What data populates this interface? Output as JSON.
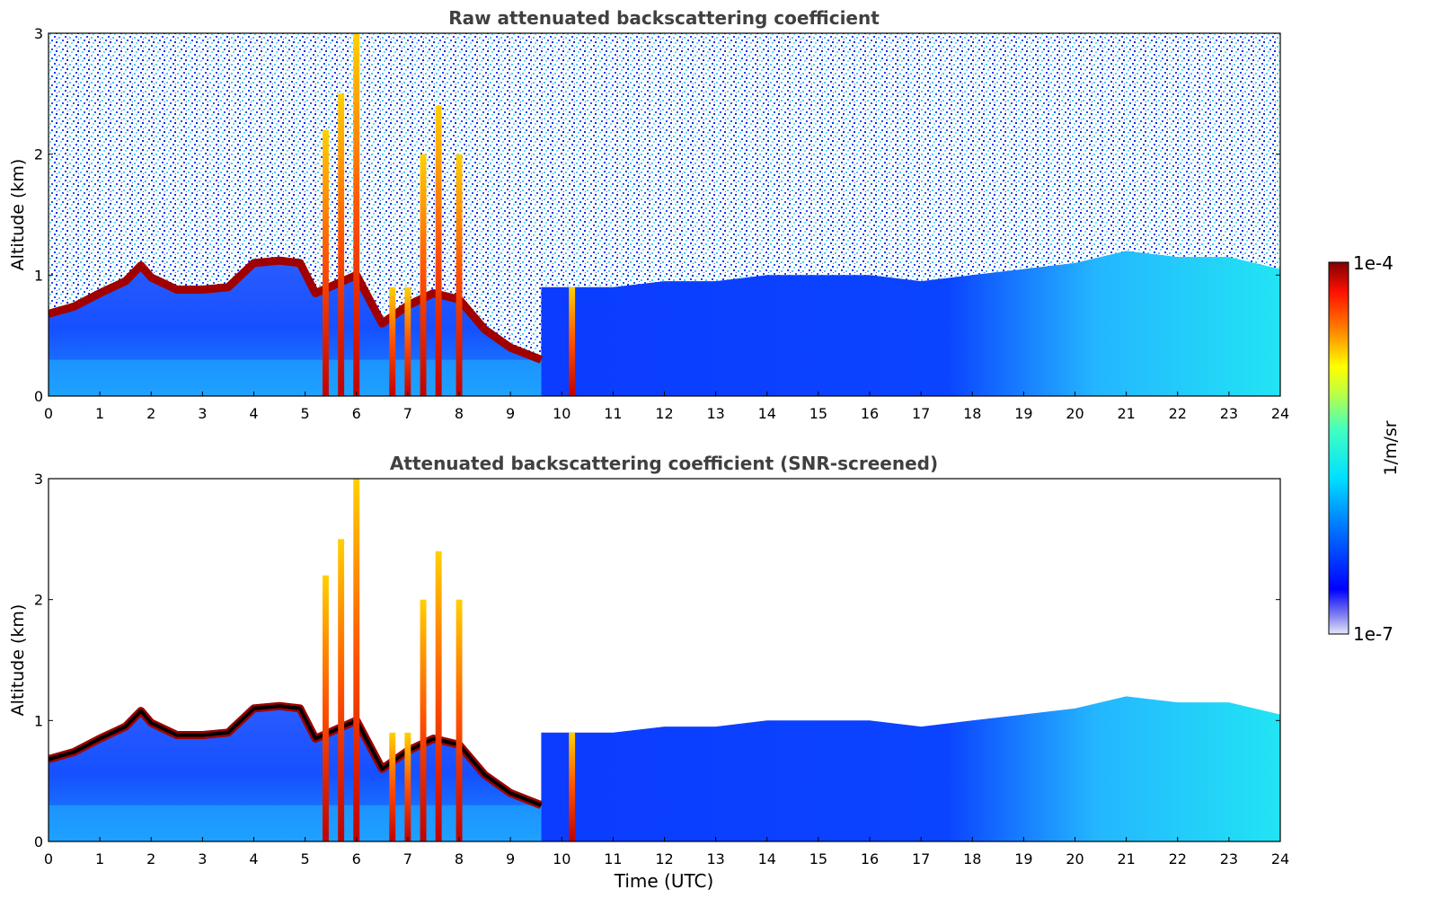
{
  "chart_data": [
    {
      "type": "heatmap",
      "title": "Raw attenuated backscattering coefficient",
      "xlabel": "",
      "ylabel": "Altitude (km)",
      "xlim": [
        0,
        24
      ],
      "ylim": [
        0,
        3
      ],
      "x_ticks": [
        "0",
        "1",
        "2",
        "3",
        "4",
        "5",
        "6",
        "7",
        "8",
        "9",
        "10",
        "11",
        "12",
        "13",
        "14",
        "15",
        "16",
        "17",
        "18",
        "19",
        "20",
        "21",
        "22",
        "23",
        "24"
      ],
      "y_ticks": [
        "0",
        "1",
        "2",
        "3"
      ],
      "colorscale": "jet",
      "color_log_range": [
        "1e-7",
        "1e-4"
      ],
      "layers": {
        "top_layer_km": [
          [
            0,
            0.68
          ],
          [
            0.5,
            0.74
          ],
          [
            1.0,
            0.85
          ],
          [
            1.5,
            0.95
          ],
          [
            1.8,
            1.08
          ],
          [
            2.0,
            0.98
          ],
          [
            2.5,
            0.88
          ],
          [
            3.0,
            0.88
          ],
          [
            3.5,
            0.9
          ],
          [
            4.0,
            1.1
          ],
          [
            4.5,
            1.12
          ],
          [
            4.9,
            1.1
          ],
          [
            5.2,
            0.85
          ],
          [
            6.0,
            1.0
          ],
          [
            6.5,
            0.6
          ],
          [
            7.0,
            0.75
          ],
          [
            7.5,
            0.85
          ],
          [
            8.0,
            0.8
          ],
          [
            8.5,
            0.55
          ],
          [
            9.0,
            0.4
          ],
          [
            9.6,
            0.3
          ]
        ],
        "plumes": [
          [
            5.4,
            2.2
          ],
          [
            5.7,
            2.5
          ],
          [
            6.0,
            3.0
          ],
          [
            6.7,
            0.9
          ],
          [
            7.0,
            0.9
          ],
          [
            7.3,
            2.0
          ],
          [
            7.6,
            2.4
          ],
          [
            8.0,
            2.0
          ],
          [
            10.2,
            0.9
          ]
        ],
        "boundary_layer_top_km": [
          [
            9.6,
            0.9
          ],
          [
            11,
            0.9
          ],
          [
            12,
            0.95
          ],
          [
            13,
            0.95
          ],
          [
            14,
            1.0
          ],
          [
            15,
            1.0
          ],
          [
            16,
            1.0
          ],
          [
            17,
            0.95
          ],
          [
            18,
            1.0
          ],
          [
            19,
            1.05
          ],
          [
            20,
            1.1
          ],
          [
            21,
            1.2
          ],
          [
            22,
            1.15
          ],
          [
            23,
            1.15
          ],
          [
            24,
            1.05
          ]
        ],
        "noise": "high above layers"
      }
    },
    {
      "type": "heatmap",
      "title": "Attenuated backscattering coefficient (SNR-screened)",
      "xlabel": "Time (UTC)",
      "ylabel": "Altitude (km)",
      "xlim": [
        0,
        24
      ],
      "ylim": [
        0,
        3
      ],
      "x_ticks": [
        "0",
        "1",
        "2",
        "3",
        "4",
        "5",
        "6",
        "7",
        "8",
        "9",
        "10",
        "11",
        "12",
        "13",
        "14",
        "15",
        "16",
        "17",
        "18",
        "19",
        "20",
        "21",
        "22",
        "23",
        "24"
      ],
      "y_ticks": [
        "0",
        "1",
        "2",
        "3"
      ],
      "colorscale": "jet",
      "color_log_range": [
        "1e-7",
        "1e-4"
      ],
      "layers": {
        "top_layer_km": [
          [
            0,
            0.68
          ],
          [
            0.5,
            0.74
          ],
          [
            1.0,
            0.85
          ],
          [
            1.5,
            0.95
          ],
          [
            1.8,
            1.08
          ],
          [
            2.0,
            0.98
          ],
          [
            2.5,
            0.88
          ],
          [
            3.0,
            0.88
          ],
          [
            3.5,
            0.9
          ],
          [
            4.0,
            1.1
          ],
          [
            4.5,
            1.12
          ],
          [
            4.9,
            1.1
          ],
          [
            5.2,
            0.85
          ],
          [
            6.0,
            1.0
          ],
          [
            6.5,
            0.6
          ],
          [
            7.0,
            0.75
          ],
          [
            7.5,
            0.85
          ],
          [
            8.0,
            0.8
          ],
          [
            8.5,
            0.55
          ],
          [
            9.0,
            0.4
          ],
          [
            9.6,
            0.3
          ]
        ],
        "plumes": [
          [
            5.4,
            2.2
          ],
          [
            5.7,
            2.5
          ],
          [
            6.0,
            3.0
          ],
          [
            6.7,
            0.9
          ],
          [
            7.0,
            0.9
          ],
          [
            7.3,
            2.0
          ],
          [
            7.6,
            2.4
          ],
          [
            8.0,
            2.0
          ],
          [
            10.2,
            0.9
          ]
        ],
        "boundary_layer_top_km": [
          [
            9.6,
            0.9
          ],
          [
            11,
            0.9
          ],
          [
            12,
            0.95
          ],
          [
            13,
            0.95
          ],
          [
            14,
            1.0
          ],
          [
            15,
            1.0
          ],
          [
            16,
            1.0
          ],
          [
            17,
            0.95
          ],
          [
            18,
            1.0
          ],
          [
            19,
            1.05
          ],
          [
            20,
            1.1
          ],
          [
            21,
            1.2
          ],
          [
            22,
            1.15
          ],
          [
            23,
            1.15
          ],
          [
            24,
            1.05
          ]
        ],
        "noise": "screened out (white)"
      }
    }
  ],
  "colorbar": {
    "label": "1/m/sr",
    "max_label": "1e-4",
    "min_label": "1e-7"
  }
}
